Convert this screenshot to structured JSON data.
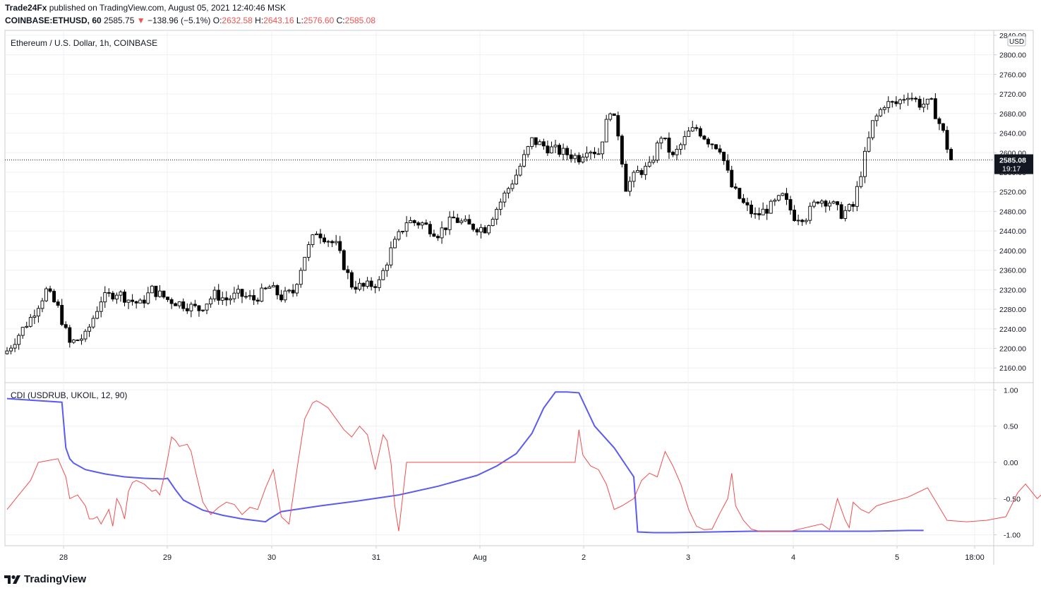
{
  "header": {
    "publisher": "Trade24Fx",
    "published_line": " published on TradingView.com, August 05, 2021 12:40:46 MSK",
    "symbol": "COINBASE:ETHUSD, 60",
    "last": "2585.75",
    "arrow": "▼",
    "change": "−138.96 (−5.1%)",
    "o_label": "O:",
    "o": "2632.58",
    "h_label": "H:",
    "h": "2643.16",
    "l_label": "L:",
    "l": "2576.60",
    "c_label": "C:",
    "c": "2585.08"
  },
  "chart_data": [
    {
      "type": "candlestick",
      "title": "Ethereum / U.S. Dollar, 1h, COINBASE",
      "y_unit": "USD",
      "ylim": [
        2130,
        2850
      ],
      "y_ticks": [
        2160,
        2200,
        2240,
        2280,
        2320,
        2360,
        2400,
        2440,
        2480,
        2520,
        2560,
        2600,
        2640,
        2680,
        2720,
        2760,
        2800,
        2840
      ],
      "x_tick_labels": [
        "28",
        "29",
        "30",
        "31",
        "Aug",
        "2",
        "3",
        "4",
        "5",
        "18:00"
      ],
      "last_price": "2585.08",
      "countdown": "19:17",
      "grid": true,
      "ohlc_path": [
        [
          0,
          2195
        ],
        [
          6,
          2262
        ],
        [
          10,
          2318
        ],
        [
          13,
          2282
        ],
        [
          16,
          2210
        ],
        [
          20,
          2225
        ],
        [
          24,
          2300
        ],
        [
          28,
          2315
        ],
        [
          31,
          2300
        ],
        [
          34,
          2290
        ],
        [
          37,
          2320
        ],
        [
          41,
          2300
        ],
        [
          45,
          2290
        ],
        [
          49,
          2280
        ],
        [
          53,
          2310
        ],
        [
          56,
          2300
        ],
        [
          59,
          2310
        ],
        [
          63,
          2300
        ],
        [
          67,
          2325
        ],
        [
          70,
          2305
        ],
        [
          73,
          2315
        ],
        [
          76,
          2390
        ],
        [
          79,
          2440
        ],
        [
          84,
          2410
        ],
        [
          88,
          2330
        ],
        [
          91,
          2325
        ],
        [
          95,
          2335
        ],
        [
          98,
          2400
        ],
        [
          102,
          2460
        ],
        [
          106,
          2455
        ],
        [
          110,
          2435
        ],
        [
          114,
          2465
        ],
        [
          118,
          2450
        ],
        [
          122,
          2445
        ],
        [
          126,
          2500
        ],
        [
          130,
          2555
        ],
        [
          134,
          2625
        ],
        [
          138,
          2610
        ],
        [
          142,
          2600
        ],
        [
          146,
          2590
        ],
        [
          148,
          2610
        ],
        [
          151,
          2600
        ],
        [
          154,
          2690
        ],
        [
          156,
          2640
        ],
        [
          158,
          2530
        ],
        [
          161,
          2560
        ],
        [
          164,
          2570
        ],
        [
          167,
          2635
        ],
        [
          170,
          2590
        ],
        [
          174,
          2640
        ],
        [
          176,
          2650
        ],
        [
          179,
          2625
        ],
        [
          182,
          2610
        ],
        [
          185,
          2530
        ],
        [
          188,
          2495
        ],
        [
          191,
          2470
        ],
        [
          195,
          2490
        ],
        [
          198,
          2510
        ],
        [
          201,
          2470
        ],
        [
          204,
          2470
        ],
        [
          207,
          2505
        ],
        [
          210,
          2500
        ],
        [
          213,
          2475
        ],
        [
          216,
          2490
        ],
        [
          218,
          2560
        ],
        [
          221,
          2660
        ],
        [
          224,
          2700
        ],
        [
          227,
          2700
        ],
        [
          230,
          2720
        ],
        [
          233,
          2700
        ],
        [
          236,
          2700
        ],
        [
          239,
          2640
        ],
        [
          241,
          2583
        ]
      ]
    },
    {
      "type": "line",
      "title": "CDI (USDRUB, UKOIL, 12, 90)",
      "ylim": [
        -1.15,
        1.1
      ],
      "y_ticks": [
        "1.00",
        "0.50",
        "0.00",
        "-0.50",
        "-1.00"
      ],
      "series": [
        {
          "color": "#5b5bf0",
          "x": [
            0,
            14,
            15,
            16,
            17,
            20,
            25,
            30,
            35,
            40,
            41,
            43,
            45,
            50,
            55,
            60,
            66,
            67,
            70,
            80,
            90,
            100,
            110,
            120,
            125,
            130,
            134,
            137,
            140,
            141,
            143,
            146,
            150,
            155,
            160,
            161,
            165,
            170,
            180,
            190,
            200,
            210,
            220,
            230,
            234
          ],
          "y": [
            0.88,
            0.83,
            0.2,
            0.05,
            -0.01,
            -0.1,
            -0.16,
            -0.2,
            -0.22,
            -0.23,
            -0.22,
            -0.38,
            -0.52,
            -0.66,
            -0.73,
            -0.78,
            -0.82,
            -0.78,
            -0.68,
            -0.6,
            -0.53,
            -0.45,
            -0.33,
            -0.18,
            -0.05,
            0.12,
            0.4,
            0.75,
            0.97,
            0.97,
            0.97,
            0.96,
            0.5,
            0.2,
            -0.2,
            -0.96,
            -0.97,
            -0.97,
            -0.96,
            -0.95,
            -0.95,
            -0.95,
            -0.95,
            -0.94,
            -0.94
          ]
        },
        {
          "color": "#f04e4e",
          "x": [
            0,
            3,
            6,
            8,
            10,
            13,
            15,
            16,
            18,
            20,
            21,
            22,
            23,
            24,
            26,
            27,
            28,
            29,
            30,
            31,
            32,
            33,
            35,
            37,
            38,
            39,
            40,
            41,
            42,
            43,
            44,
            46,
            47,
            48,
            50,
            52,
            54,
            56,
            58,
            60,
            62,
            64,
            66,
            68,
            70,
            72,
            74,
            76,
            78,
            79,
            80,
            82,
            84,
            86,
            88,
            90,
            92,
            94,
            96,
            97,
            98,
            99,
            100,
            102,
            104,
            105,
            110,
            120,
            130,
            140,
            144,
            145,
            146,
            147,
            149,
            151,
            153,
            155,
            157,
            160,
            162,
            164,
            166,
            168,
            170,
            172,
            174,
            176,
            178,
            180,
            182,
            184,
            185,
            186,
            188,
            190,
            192,
            196,
            200,
            204,
            208,
            210,
            212,
            214,
            215,
            216,
            218,
            220,
            222,
            225,
            230,
            235,
            240,
            245,
            250,
            255,
            258,
            260,
            263,
            265,
            267
          ],
          "y": [
            -0.65,
            -0.45,
            -0.25,
            0.0,
            0.02,
            0.05,
            -0.2,
            -0.5,
            -0.45,
            -0.6,
            -0.78,
            -0.78,
            -0.75,
            -0.85,
            -0.65,
            -0.88,
            -0.5,
            -0.6,
            -0.78,
            -0.4,
            -0.28,
            -0.25,
            -0.3,
            -0.4,
            -0.38,
            -0.45,
            -0.22,
            0.05,
            0.35,
            0.3,
            0.22,
            0.25,
            0.15,
            -0.1,
            -0.55,
            -0.72,
            -0.62,
            -0.55,
            -0.58,
            -0.72,
            -0.62,
            -0.65,
            -0.35,
            -0.1,
            -0.75,
            -0.85,
            -0.1,
            0.6,
            0.82,
            0.85,
            0.82,
            0.75,
            0.6,
            0.45,
            0.35,
            0.5,
            0.38,
            -0.1,
            0.38,
            0.3,
            0.0,
            -0.6,
            -0.95,
            0.0,
            0.0,
            0.0,
            0.0,
            0.0,
            0.0,
            0.0,
            0.0,
            0.0,
            0.45,
            0.1,
            -0.05,
            -0.1,
            -0.3,
            -0.65,
            -0.6,
            -0.5,
            -0.25,
            -0.15,
            -0.2,
            0.15,
            -0.05,
            -0.3,
            -0.65,
            -0.88,
            -0.93,
            -0.92,
            -0.7,
            -0.5,
            -0.15,
            -0.6,
            -0.8,
            -0.92,
            -0.95,
            -0.95,
            -0.95,
            -0.9,
            -0.85,
            -0.93,
            -0.5,
            -0.8,
            -0.9,
            -0.55,
            -0.65,
            -0.7,
            -0.6,
            -0.55,
            -0.48,
            -0.35,
            -0.8,
            -0.82,
            -0.8,
            -0.75,
            -0.42,
            -0.3,
            -0.5,
            -0.4,
            -0.42
          ]
        }
      ]
    }
  ],
  "footer": {
    "brand": "TradingView"
  }
}
